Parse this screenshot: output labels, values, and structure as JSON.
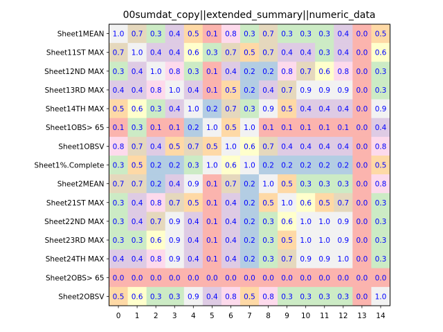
{
  "chart_data": {
    "type": "heatmap",
    "title": "00sumdat_copy||extended_summary||numeric_data",
    "xlabel": "",
    "ylabel": "",
    "x_tick_labels": [
      "0",
      "1",
      "2",
      "3",
      "4",
      "5",
      "6",
      "7",
      "8",
      "9",
      "10",
      "11",
      "12",
      "13",
      "14"
    ],
    "y_tick_labels": [
      "Sheet1MEAN",
      "Sheet11ST MAX",
      "Sheet12ND MAX",
      "Sheet13RD MAX",
      "Sheet14TH MAX",
      "Sheet1OBS> 65",
      "Sheet1OBSV",
      "Sheet1%.Complete",
      "Sheet2MEAN",
      "Sheet21ST MAX",
      "Sheet22ND MAX",
      "Sheet23RD MAX",
      "Sheet24TH MAX",
      "Sheet2OBS> 65",
      "Sheet2OBSV"
    ],
    "values": [
      [
        1.0,
        0.7,
        0.3,
        0.4,
        0.5,
        0.1,
        0.8,
        0.3,
        0.7,
        0.3,
        0.3,
        0.3,
        0.4,
        0.0,
        0.5
      ],
      [
        0.7,
        1.0,
        0.4,
        0.4,
        0.6,
        0.3,
        0.7,
        0.5,
        0.7,
        0.4,
        0.4,
        0.3,
        0.4,
        0.0,
        0.6
      ],
      [
        0.3,
        0.4,
        1.0,
        0.8,
        0.3,
        0.1,
        0.4,
        0.2,
        0.2,
        0.8,
        0.7,
        0.6,
        0.8,
        0.0,
        0.3
      ],
      [
        0.4,
        0.4,
        0.8,
        1.0,
        0.4,
        0.1,
        0.5,
        0.2,
        0.4,
        0.7,
        0.9,
        0.9,
        0.9,
        0.0,
        0.3
      ],
      [
        0.5,
        0.6,
        0.3,
        0.4,
        1.0,
        0.2,
        0.7,
        0.3,
        0.9,
        0.5,
        0.4,
        0.4,
        0.4,
        0.0,
        0.9
      ],
      [
        0.1,
        0.3,
        0.1,
        0.1,
        0.2,
        1.0,
        0.5,
        1.0,
        0.1,
        0.1,
        0.1,
        0.1,
        0.1,
        0.0,
        0.4
      ],
      [
        0.8,
        0.7,
        0.4,
        0.5,
        0.7,
        0.5,
        1.0,
        0.6,
        0.7,
        0.4,
        0.4,
        0.4,
        0.4,
        0.0,
        0.8
      ],
      [
        0.3,
        0.5,
        0.2,
        0.2,
        0.3,
        1.0,
        0.6,
        1.0,
        0.2,
        0.2,
        0.2,
        0.2,
        0.2,
        0.0,
        0.5
      ],
      [
        0.7,
        0.7,
        0.2,
        0.4,
        0.9,
        0.1,
        0.7,
        0.2,
        1.0,
        0.5,
        0.3,
        0.3,
        0.3,
        0.0,
        0.8
      ],
      [
        0.3,
        0.4,
        0.8,
        0.7,
        0.5,
        0.1,
        0.4,
        0.2,
        0.5,
        1.0,
        0.6,
        0.5,
        0.7,
        0.0,
        0.3
      ],
      [
        0.3,
        0.4,
        0.7,
        0.9,
        0.4,
        0.1,
        0.4,
        0.2,
        0.3,
        0.6,
        1.0,
        1.0,
        0.9,
        0.0,
        0.3
      ],
      [
        0.3,
        0.3,
        0.6,
        0.9,
        0.4,
        0.1,
        0.4,
        0.2,
        0.3,
        0.5,
        1.0,
        1.0,
        0.9,
        0.0,
        0.3
      ],
      [
        0.4,
        0.4,
        0.8,
        0.9,
        0.4,
        0.1,
        0.4,
        0.2,
        0.3,
        0.7,
        0.9,
        0.9,
        1.0,
        0.0,
        0.3
      ],
      [
        0.0,
        0.0,
        0.0,
        0.0,
        0.0,
        0.0,
        0.0,
        0.0,
        0.0,
        0.0,
        0.0,
        0.0,
        0.0,
        0.0,
        0.0
      ],
      [
        0.5,
        0.6,
        0.3,
        0.3,
        0.9,
        0.4,
        0.8,
        0.5,
        0.8,
        0.3,
        0.3,
        0.3,
        0.3,
        0.0,
        1.0
      ]
    ],
    "value_format": "1 decimal",
    "value_label_color": "#0000ff",
    "colormap": "Pastel1 (qualitative pastel)",
    "palette": [
      "#fbb4ae",
      "#b3cde3",
      "#ccebc5",
      "#decbe4",
      "#fed9a6",
      "#ffffcc",
      "#e5d8bd",
      "#fddaec",
      "#f2f2f2"
    ],
    "grid": false,
    "colorbar": false
  }
}
